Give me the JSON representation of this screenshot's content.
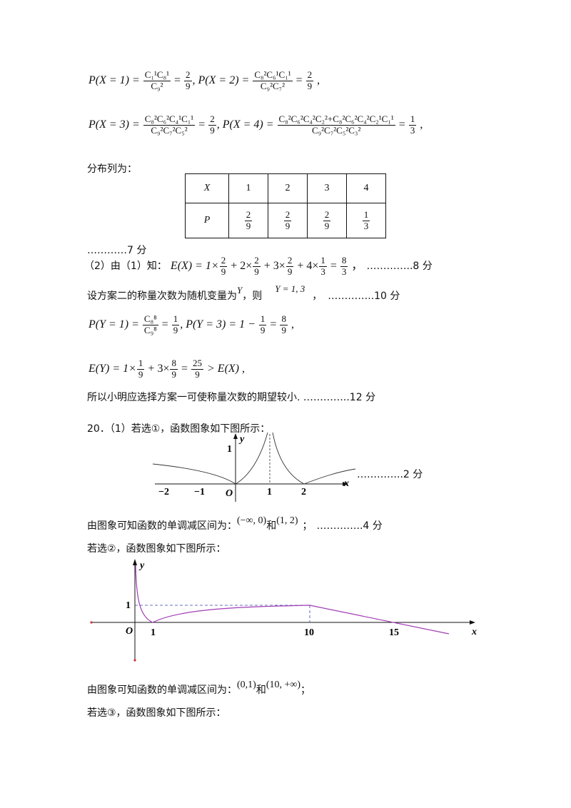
{
  "eq1": {
    "p1_lhs": "P(X = 1) = ",
    "p1_num": "C₁¹C₈¹",
    "p1_den": "C₉²",
    "p1_val_num": "2",
    "p1_val_den": "9",
    "p2_lhs": ", P(X = 2) = ",
    "p2_num": "C₈²C₆¹C₁¹",
    "p2_den": "C₉²C₇²",
    "p2_val_num": "2",
    "p2_val_den": "9",
    "tail": " ,"
  },
  "eq2": {
    "p3_lhs": "P(X = 3) = ",
    "p3_num": "C₈²C₆²C₄¹C₁¹",
    "p3_den": "C₉²C₇²C₅²",
    "p3_val_num": "2",
    "p3_val_den": "9",
    "p4_lhs": ", P(X = 4) = ",
    "p4_num": "C₈²C₆²C₄²C₂²+C₈²C₆²C₄²C₂¹C₁¹",
    "p4_den": "C₉²C₇²C₅²C₃²",
    "p4_val_num": "1",
    "p4_val_den": "3",
    "tail": " ,"
  },
  "dist_label": "分布列为：",
  "table": {
    "row1": [
      "X",
      "1",
      "2",
      "3",
      "4"
    ],
    "row2_head": "P",
    "row2": [
      {
        "n": "2",
        "d": "9"
      },
      {
        "n": "2",
        "d": "9"
      },
      {
        "n": "2",
        "d": "9"
      },
      {
        "n": "1",
        "d": "3"
      }
    ]
  },
  "score7": "…………7 分",
  "part2": {
    "prefix": "（2）由（1）知：",
    "ex": "E(X) = 1×",
    "f1n": "2",
    "f1d": "9",
    "mid1": " + 2×",
    "f2n": "2",
    "f2d": "9",
    "mid2": " + 3×",
    "f3n": "2",
    "f3d": "9",
    "mid3": " + 4×",
    "f4n": "1",
    "f4d": "3",
    "mid4": " = ",
    "f5n": "8",
    "f5d": "3",
    "end": " ，",
    "score": "…………..8 分"
  },
  "plan2": {
    "text": "设方案二的称量次数为随机变量为",
    "var": "Y",
    "then": "，则",
    "vals": "Y = 1, 3",
    "comma": "，",
    "score": "…………..10 分"
  },
  "eq3": {
    "lhs1": "P(Y = 1) = ",
    "n1": "C₈⁸",
    "d1": "C₉⁸",
    "eqn": " = ",
    "v1n": "1",
    "v1d": "9",
    "lhs2": ", P(Y = 3) = 1 − ",
    "v2n": "1",
    "v2d": "9",
    "v3n": "8",
    "v3d": "9",
    "tail": " ,"
  },
  "eq4": {
    "lhs": "E(Y) = 1×",
    "a_n": "1",
    "a_d": "9",
    "mid": " + 3×",
    "b_n": "8",
    "b_d": "9",
    "c_n": "25",
    "c_d": "9",
    "rhs": " > E(X) ,"
  },
  "conclusion": "所以小明应选择方案一可使称量次数的期望较小. …………..12 分",
  "q20": "20．（1）若选①，函数图象如下图所示：",
  "graph1": {
    "ticks_x": [
      "−2",
      "−1",
      "O",
      "1",
      "2"
    ],
    "tick_y": "1",
    "xlab": "x",
    "ylab": "y",
    "score": "…………..2 分"
  },
  "dec1": {
    "text": "由图象可知函数的单调减区间为：",
    "i1": "(−∞, 0)",
    "and": "和",
    "i2": "(1, 2)",
    "sep": "；",
    "score": "…………..4 分"
  },
  "sel2": "若选②，函数图象如下图所示：",
  "graph2": {
    "ticks_x": [
      "O",
      "1",
      "10",
      "15"
    ],
    "tick_y": "1",
    "xlab": "x",
    "ylab": "y",
    "curve_color": "#a03cb4"
  },
  "dec2": {
    "text": "由图象可知函数的单调减区间为：",
    "i1": "(0,1)",
    "and": "和",
    "i2": "(10, +∞)",
    "sep": "；"
  },
  "sel3": "若选③，函数图象如下图所示："
}
